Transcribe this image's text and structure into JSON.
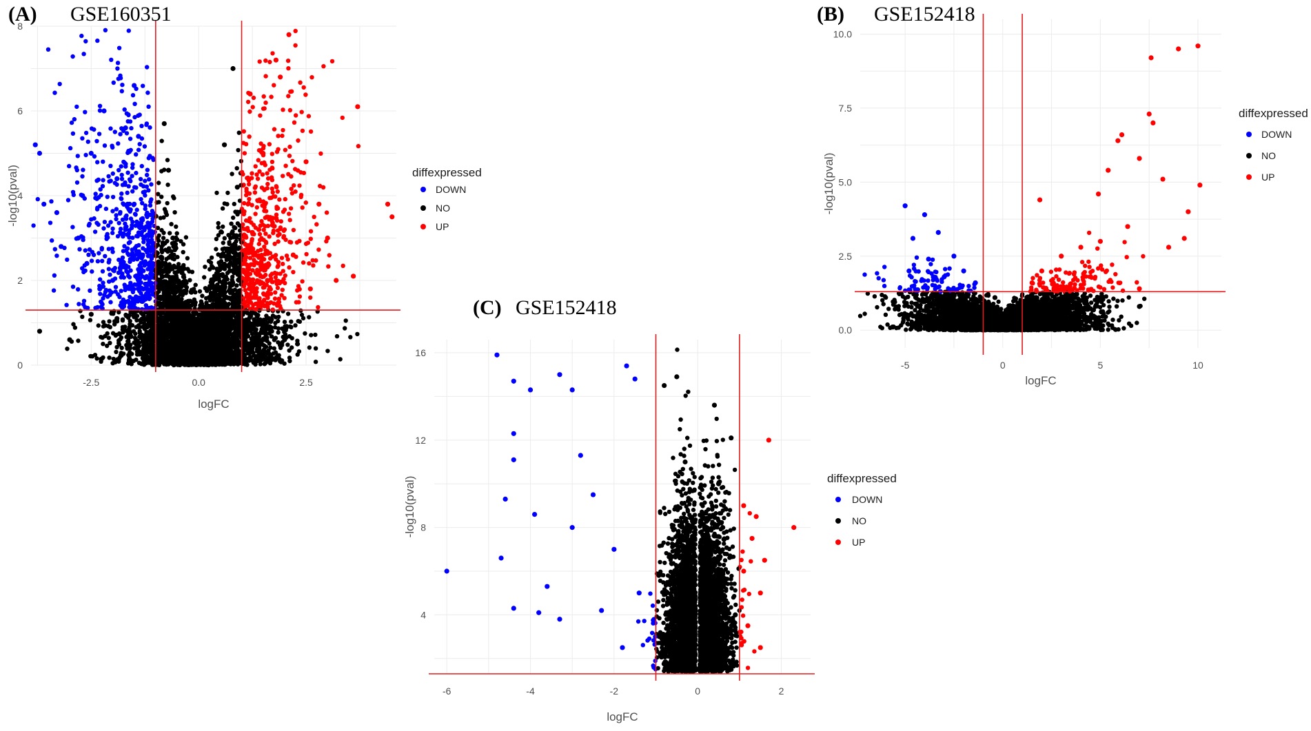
{
  "colors": {
    "DOWN": "#0000ff",
    "NO": "#000000",
    "UP": "#ff0000",
    "threshold": "#e31a1c",
    "grid": "#ebebeb"
  },
  "chart_data": [
    {
      "panel": "(A)",
      "title": "GSE160351",
      "type": "scatter",
      "xlabel": "logFC",
      "ylabel": "-log10(pval)",
      "xlim": [
        -3.9,
        4.6
      ],
      "ylim": [
        0,
        8
      ],
      "xticks": [
        -2.5,
        0.0,
        2.5
      ],
      "xtick_labels": [
        "-2.5",
        "0.0",
        "2.5"
      ],
      "yticks": [
        0,
        2,
        4,
        6,
        8
      ],
      "ytick_labels": [
        "0",
        "2",
        "4",
        "6",
        "8"
      ],
      "vlines": [
        -1,
        1
      ],
      "hline": 1.3,
      "legend": {
        "title": "diffexpressed",
        "items": [
          "DOWN",
          "NO",
          "UP"
        ],
        "position": "right"
      },
      "grid": true,
      "series": [
        {
          "name": "DOWN",
          "points": [
            [
              -3.8,
              5.2
            ],
            [
              -3.7,
              5.0
            ],
            [
              -3.6,
              3.8
            ],
            [
              -3.3,
              3.6
            ],
            [
              -3.2,
              2.8
            ],
            [
              -2.5,
              5.0
            ],
            [
              -2.2,
              6.0
            ],
            [
              -1.5,
              6.6
            ],
            [
              -1.7,
              5.6
            ],
            [
              -1.4,
              5.4
            ],
            [
              -2.7,
              4.0
            ],
            [
              -2.8,
              3.0
            ],
            [
              -2.6,
              2.4
            ],
            [
              -1.9,
              4.4
            ],
            [
              -1.5,
              3.8
            ],
            [
              -1.3,
              2.6
            ],
            [
              -1.7,
              3.2
            ],
            [
              -2.0,
              2.0
            ],
            [
              -1.2,
              1.8
            ],
            [
              -2.3,
              1.8
            ]
          ]
        },
        {
          "name": "NO",
          "points": [
            [
              -3.7,
              0.8
            ],
            [
              -3.0,
              0.6
            ],
            [
              -2.5,
              1.2
            ],
            [
              -1.9,
              1.1
            ],
            [
              -1.2,
              0.9
            ],
            [
              -0.8,
              5.7
            ],
            [
              -0.7,
              4.6
            ],
            [
              -0.6,
              3.0
            ],
            [
              -0.4,
              1.3
            ],
            [
              -0.2,
              0.5
            ],
            [
              0.0,
              0.05
            ],
            [
              0.2,
              0.5
            ],
            [
              0.5,
              1.4
            ],
            [
              0.7,
              2.6
            ],
            [
              0.8,
              7.0
            ],
            [
              0.9,
              4.2
            ],
            [
              0.6,
              5.2
            ],
            [
              1.2,
              0.9
            ],
            [
              1.7,
              0.8
            ],
            [
              2.0,
              0.6
            ],
            [
              2.3,
              0.5
            ]
          ]
        },
        {
          "name": "UP",
          "points": [
            [
              2.1,
              7.8
            ],
            [
              1.8,
              7.2
            ],
            [
              1.9,
              6.8
            ],
            [
              1.2,
              6.4
            ],
            [
              3.7,
              6.1
            ],
            [
              4.4,
              3.8
            ],
            [
              4.5,
              3.5
            ],
            [
              3.6,
              2.1
            ],
            [
              3.2,
              2.0
            ],
            [
              2.8,
              3.8
            ],
            [
              2.5,
              4.8
            ],
            [
              1.5,
              5.0
            ],
            [
              1.4,
              3.2
            ],
            [
              1.6,
              2.0
            ],
            [
              2.2,
              2.6
            ],
            [
              3.0,
              3.0
            ],
            [
              1.3,
              1.6
            ],
            [
              2.6,
              1.8
            ]
          ]
        }
      ]
    },
    {
      "panel": "(B)",
      "title": "GSE152418",
      "type": "scatter",
      "xlabel": "logFC",
      "ylabel": "-log10(pval)",
      "xlim": [
        -7.3,
        11.2
      ],
      "ylim": [
        -0.6,
        10.5
      ],
      "xticks": [
        -5,
        0,
        5,
        10
      ],
      "xtick_labels": [
        "-5",
        "0",
        "5",
        "10"
      ],
      "yticks": [
        0.0,
        2.5,
        5.0,
        7.5,
        10.0
      ],
      "ytick_labels": [
        "0.0",
        "2.5",
        "5.0",
        "7.5",
        "10.0"
      ],
      "vlines": [
        -1,
        1
      ],
      "hline": 1.3,
      "legend": {
        "title": "diffexpressed",
        "items": [
          "DOWN",
          "NO",
          "UP"
        ],
        "position": "right"
      },
      "grid": true,
      "series": [
        {
          "name": "DOWN",
          "points": [
            [
              -5.0,
              4.2
            ],
            [
              -4.0,
              3.9
            ],
            [
              -4.6,
              3.1
            ],
            [
              -3.3,
              3.3
            ],
            [
              -3.8,
              2.4
            ],
            [
              -4.8,
              2.0
            ],
            [
              -2.5,
              2.5
            ],
            [
              -2.0,
              2.0
            ],
            [
              -1.4,
              1.6
            ],
            [
              -3.0,
              1.8
            ]
          ]
        },
        {
          "name": "NO",
          "points": [
            [
              -4.8,
              0.5
            ],
            [
              -3.6,
              0.8
            ],
            [
              -2.5,
              0.9
            ],
            [
              -1.8,
              0.6
            ],
            [
              -1.0,
              0.3
            ],
            [
              0.0,
              0.02
            ],
            [
              1.0,
              0.3
            ],
            [
              2.0,
              0.7
            ],
            [
              3.0,
              0.9
            ],
            [
              4.0,
              1.0
            ],
            [
              5.0,
              1.1
            ],
            [
              7.0,
              0.8
            ],
            [
              -0.4,
              1.1
            ]
          ]
        },
        {
          "name": "UP",
          "points": [
            [
              10.0,
              9.6
            ],
            [
              9.0,
              9.5
            ],
            [
              7.6,
              9.2
            ],
            [
              7.5,
              7.3
            ],
            [
              7.7,
              7.0
            ],
            [
              6.1,
              6.6
            ],
            [
              5.9,
              6.4
            ],
            [
              7.0,
              5.8
            ],
            [
              10.1,
              4.9
            ],
            [
              8.2,
              5.1
            ],
            [
              5.4,
              5.4
            ],
            [
              4.9,
              4.6
            ],
            [
              9.5,
              4.0
            ],
            [
              6.4,
              3.5
            ],
            [
              5.0,
              3.0
            ],
            [
              4.0,
              2.8
            ],
            [
              3.0,
              2.5
            ],
            [
              2.0,
              2.0
            ],
            [
              1.5,
              1.6
            ],
            [
              8.5,
              2.8
            ],
            [
              9.3,
              3.1
            ],
            [
              7.0,
              1.4
            ],
            [
              1.9,
              4.4
            ]
          ]
        }
      ]
    },
    {
      "panel": "(C)",
      "title": "GSE152418",
      "type": "scatter",
      "xlabel": "logFC",
      "ylabel": "-log10(pval)",
      "xlim": [
        -6.3,
        2.7
      ],
      "ylim": [
        1.3,
        16.6
      ],
      "xticks": [
        -6,
        -4,
        -2,
        0,
        2
      ],
      "xtick_labels": [
        "-6",
        "-4",
        "-2",
        "0",
        "2"
      ],
      "yticks": [
        4,
        8,
        12,
        16
      ],
      "ytick_labels": [
        "4",
        "8",
        "12",
        "16"
      ],
      "vlines": [
        -1,
        1
      ],
      "hline": 1.3,
      "legend": {
        "title": "diffexpressed",
        "items": [
          "DOWN",
          "NO",
          "UP"
        ],
        "position": "right"
      },
      "grid": true,
      "series": [
        {
          "name": "DOWN",
          "points": [
            [
              -4.8,
              15.9
            ],
            [
              -4.4,
              14.7
            ],
            [
              -3.3,
              15.0
            ],
            [
              -3.0,
              14.3
            ],
            [
              -1.7,
              15.4
            ],
            [
              -1.5,
              14.8
            ],
            [
              -4.0,
              14.3
            ],
            [
              -4.4,
              12.3
            ],
            [
              -4.4,
              11.1
            ],
            [
              -4.6,
              9.3
            ],
            [
              -3.9,
              8.6
            ],
            [
              -4.7,
              6.6
            ],
            [
              -6.0,
              6.0
            ],
            [
              -4.4,
              4.3
            ],
            [
              -3.6,
              5.3
            ],
            [
              -3.8,
              4.1
            ],
            [
              -3.3,
              3.8
            ],
            [
              -2.8,
              11.3
            ],
            [
              -2.5,
              9.5
            ],
            [
              -2.0,
              7.0
            ],
            [
              -1.4,
              5.0
            ],
            [
              -1.8,
              2.5
            ],
            [
              -2.3,
              4.2
            ],
            [
              -3.0,
              8.0
            ]
          ]
        },
        {
          "name": "NO",
          "points": [
            [
              -0.8,
              14.5
            ],
            [
              -0.5,
              14.9
            ],
            [
              -0.3,
              11.0
            ],
            [
              -0.6,
              8.0
            ],
            [
              -0.4,
              5.0
            ],
            [
              -0.2,
              2.0
            ],
            [
              0.0,
              1.5
            ],
            [
              0.2,
              2.0
            ],
            [
              0.4,
              5.0
            ],
            [
              0.5,
              10.0
            ],
            [
              0.4,
              13.6
            ],
            [
              0.8,
              12.1
            ],
            [
              0.6,
              8.0
            ],
            [
              0.9,
              4.0
            ],
            [
              -0.9,
              3.0
            ]
          ]
        },
        {
          "name": "UP",
          "points": [
            [
              1.7,
              12.0
            ],
            [
              2.3,
              8.0
            ],
            [
              1.4,
              8.5
            ],
            [
              1.3,
              7.5
            ],
            [
              1.1,
              6.0
            ],
            [
              1.5,
              5.0
            ],
            [
              1.2,
              3.5
            ],
            [
              1.5,
              2.5
            ],
            [
              1.1,
              9.0
            ],
            [
              1.6,
              6.5
            ]
          ]
        }
      ]
    }
  ]
}
